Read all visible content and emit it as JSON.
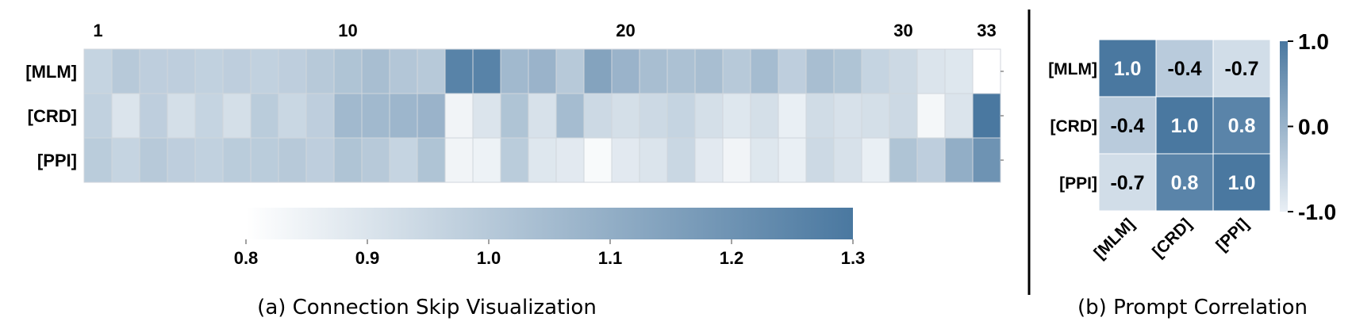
{
  "chart_data": [
    {
      "type": "heatmap",
      "title": "",
      "caption": "(a) Connection Skip Visualization",
      "x_tick_labels": [
        "1",
        "10",
        "20",
        "30",
        "33"
      ],
      "x_tick_positions": [
        1,
        10,
        20,
        30,
        33
      ],
      "rows": [
        "[MLM]",
        "[CRD]",
        "[PPI]"
      ],
      "columns": [
        1,
        2,
        3,
        4,
        5,
        6,
        7,
        8,
        9,
        10,
        11,
        12,
        13,
        14,
        15,
        16,
        17,
        18,
        19,
        20,
        21,
        22,
        23,
        24,
        25,
        26,
        27,
        28,
        29,
        30,
        31,
        32,
        33
      ],
      "values": [
        [
          0.96,
          1.0,
          0.98,
          0.98,
          0.97,
          0.98,
          0.97,
          0.98,
          1.0,
          1.02,
          1.04,
          1.01,
          1.0,
          1.26,
          1.26,
          1.06,
          1.08,
          1.0,
          1.14,
          1.08,
          1.04,
          1.03,
          1.04,
          1.0,
          1.05,
          0.98,
          1.04,
          1.02,
          0.96,
          0.94,
          0.9,
          0.89,
          0.8
        ],
        [
          0.97,
          0.9,
          0.98,
          0.92,
          0.96,
          0.92,
          0.99,
          0.95,
          0.98,
          1.06,
          1.06,
          1.07,
          1.08,
          0.84,
          0.9,
          1.02,
          0.91,
          1.05,
          0.94,
          0.92,
          0.94,
          0.96,
          0.92,
          0.89,
          0.92,
          0.86,
          0.93,
          0.91,
          0.92,
          0.94,
          0.83,
          0.9,
          1.3
        ],
        [
          0.99,
          0.96,
          1.0,
          0.98,
          0.97,
          0.99,
          0.99,
          1.0,
          0.98,
          1.02,
          1.0,
          0.96,
          1.02,
          0.84,
          0.85,
          0.99,
          0.89,
          0.88,
          0.82,
          0.88,
          0.9,
          0.95,
          0.88,
          0.84,
          0.89,
          0.86,
          0.94,
          0.91,
          0.86,
          1.02,
          0.98,
          1.1,
          1.2
        ]
      ],
      "colorbar": {
        "min": 0.8,
        "max": 1.3,
        "tick_labels": [
          "0.8",
          "0.9",
          "1.0",
          "1.1",
          "1.2",
          "1.3"
        ],
        "ticks": [
          0.8,
          0.9,
          1.0,
          1.1,
          1.2,
          1.3
        ],
        "orientation": "horizontal"
      },
      "colormap": {
        "low": "#ffffff",
        "high": "#4a78a0"
      }
    },
    {
      "type": "heatmap",
      "title": "",
      "caption": "(b) Prompt Correlation",
      "rows": [
        "[MLM]",
        "[CRD]",
        "[PPI]"
      ],
      "columns": [
        "[MLM]",
        "[CRD]",
        "[PPI]"
      ],
      "values": [
        [
          1.0,
          -0.4,
          -0.7
        ],
        [
          -0.4,
          1.0,
          0.8
        ],
        [
          -0.7,
          0.8,
          1.0
        ]
      ],
      "cell_labels": [
        [
          "1.0",
          "-0.4",
          "-0.7"
        ],
        [
          "-0.4",
          "1.0",
          "0.8"
        ],
        [
          "-0.7",
          "0.8",
          "1.0"
        ]
      ],
      "colorbar": {
        "min": -1.0,
        "max": 1.0,
        "tick_labels": [
          "1.0",
          "0.0",
          "-1.0"
        ],
        "ticks": [
          1.0,
          0.0,
          -1.0
        ],
        "orientation": "vertical"
      },
      "colormap": {
        "low": "#e9eff5",
        "high": "#4a78a0"
      }
    }
  ],
  "colors": {
    "cell_border": "#d0d6dc",
    "divider": "#000000",
    "text": "#000000",
    "cell_text_light": "#ffffff"
  }
}
